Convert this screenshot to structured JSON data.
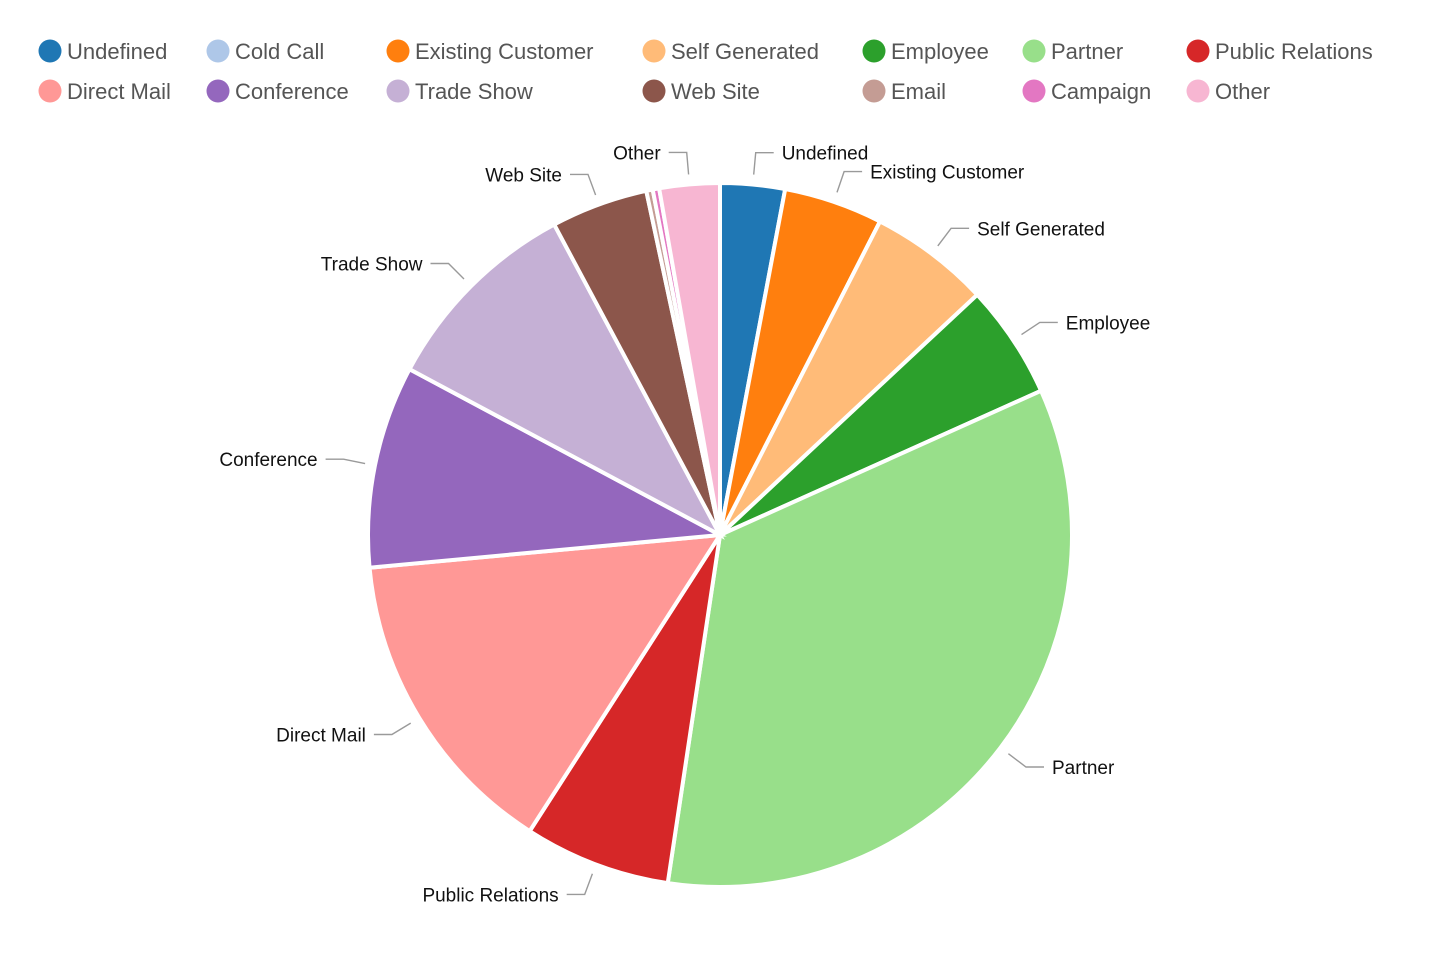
{
  "chart_data": {
    "type": "pie",
    "legend_position": "top",
    "categories": [
      "Undefined",
      "Cold Call",
      "Existing Customer",
      "Self Generated",
      "Employee",
      "Partner",
      "Public Relations",
      "Direct Mail",
      "Conference",
      "Trade Show",
      "Web Site",
      "Email",
      "Campaign",
      "Other"
    ],
    "values": [
      3.0,
      0,
      4.6,
      5.6,
      5.3,
      34.5,
      6.8,
      14.6,
      9.4,
      9.5,
      4.5,
      0.3,
      0.3,
      2.8
    ],
    "colors": [
      "#1f77b4",
      "#aec7e8",
      "#ff7f0e",
      "#ffbb78",
      "#2ca02c",
      "#98df8a",
      "#d62728",
      "#ff9896",
      "#9467bd",
      "#c5b0d5",
      "#8c564b",
      "#c49c94",
      "#e377c2",
      "#f7b6d2"
    ],
    "legend": [
      "Undefined",
      "Cold Call",
      "Existing Customer",
      "Self Generated",
      "Employee",
      "Partner",
      "Public Relations",
      "Direct Mail",
      "Conference",
      "Trade Show",
      "Web Site",
      "Email",
      "Campaign",
      "Other"
    ],
    "slice_labels": [
      "Undefined",
      "",
      "Existing Customer",
      "Self Generated",
      "Employee",
      "Partner",
      "Public Relations",
      "Direct Mail",
      "Conference",
      "Trade Show",
      "Web Site",
      "",
      "",
      "Other"
    ]
  }
}
